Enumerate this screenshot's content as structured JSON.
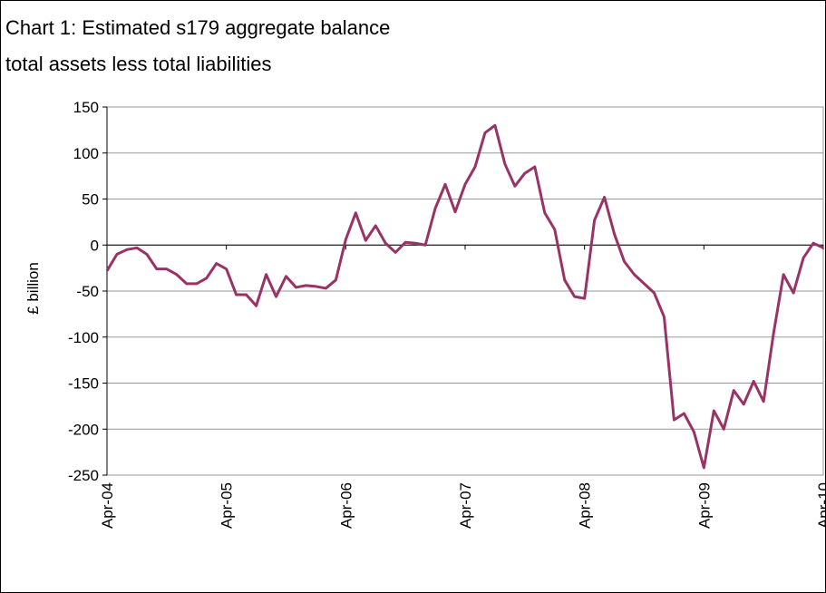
{
  "chart_data": {
    "type": "line",
    "title": "Chart 1: Estimated s179 aggregate balance",
    "subtitle": "total assets less total liabilities",
    "y_label": "£ billion",
    "categories": [
      "Apr-04",
      null,
      null,
      null,
      null,
      null,
      null,
      null,
      null,
      null,
      null,
      null,
      "Apr-05",
      null,
      null,
      null,
      null,
      null,
      null,
      null,
      null,
      null,
      null,
      null,
      "Apr-06",
      null,
      null,
      null,
      null,
      null,
      null,
      null,
      null,
      null,
      null,
      null,
      "Apr-07",
      null,
      null,
      null,
      null,
      null,
      null,
      null,
      null,
      null,
      null,
      null,
      "Apr-08",
      null,
      null,
      null,
      null,
      null,
      null,
      null,
      null,
      null,
      null,
      null,
      "Apr-09",
      null,
      null,
      null,
      null,
      null,
      null,
      null,
      null,
      null,
      null,
      null,
      "Apr-10"
    ],
    "series": [
      {
        "color": "#993366",
        "values": [
          -28,
          -10,
          -5,
          -3,
          -10,
          -26,
          -26,
          -32,
          -42,
          -42,
          -36,
          -20,
          -26,
          -54,
          -54,
          -66,
          -32,
          -56,
          -34,
          -46,
          -44,
          -45,
          -47,
          -38,
          6,
          35,
          5,
          21,
          2,
          -8,
          3,
          2,
          0,
          40,
          66,
          36,
          66,
          85,
          122,
          130,
          88,
          64,
          78,
          85,
          35,
          17,
          -38,
          -56,
          -58,
          27,
          52,
          12,
          -18,
          -32,
          -42,
          -52,
          -78,
          -190,
          -183,
          -203,
          -242,
          -180,
          -200,
          -158,
          -173,
          -148,
          -170,
          -96,
          -32,
          -52,
          -14,
          2,
          -3
        ]
      }
    ],
    "ylim": [
      -250,
      150
    ],
    "yticks": [
      -250,
      -200,
      -150,
      -100,
      -50,
      0,
      50,
      100,
      150
    ],
    "grid": true
  }
}
